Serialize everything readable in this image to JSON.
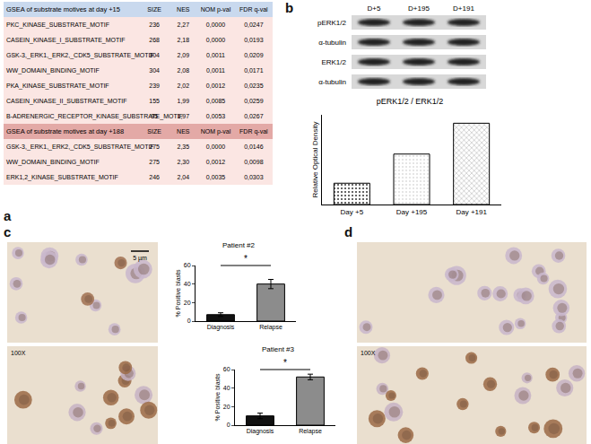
{
  "panel_labels": [
    "a",
    "b",
    "c",
    "d"
  ],
  "table": {
    "sections": [
      {
        "title": "GSEA of substrate motives at day +15",
        "header": [
          "SIZE",
          "NES",
          "NOM p-val",
          "FDR q-val"
        ],
        "rows": [
          [
            "PKC_KINASE_SUBSTRATE_MOTIF",
            "236",
            "2,27",
            "0,0000",
            "0,0247"
          ],
          [
            "CASEIN_KINASE_I_SUBSTRATE_MOTIF",
            "268",
            "2,18",
            "0,0000",
            "0,0193"
          ],
          [
            "GSK-3,_ERK1,_ERK2,_CDK5_SUBSTRATE_MOTIF",
            "304",
            "2,09",
            "0,0011",
            "0,0209"
          ],
          [
            "WW_DOMAIN_BINDING_MOTIF",
            "304",
            "2,08",
            "0,0011",
            "0,0171"
          ],
          [
            "PKA_KINASE_SUBSTRATE_MOTIF",
            "239",
            "2,02",
            "0,0012",
            "0,0235"
          ],
          [
            "CASEIN_KINASE_II_SUBSTRATE_MOTIF",
            "155",
            "1,99",
            "0,0085",
            "0,0259"
          ],
          [
            "B-ADRENERGIC_RECEPTOR_KINASE_SUBSTRATE_MOTIF",
            "95",
            "1,97",
            "0,0053",
            "0,0267"
          ]
        ]
      },
      {
        "title": "GSEA of  substrate motives at day +188",
        "header": [
          "SIZE",
          "NES",
          "NOM p-val",
          "FDR q-val"
        ],
        "rows": [
          [
            "GSK-3,_ERK1,_ERK2,_CDK5_SUBSTRATE_MOTIF",
            "275",
            "2,35",
            "0,0000",
            "0,0146"
          ],
          [
            "WW_DOMAIN_BINDING_MOTIF",
            "275",
            "2,30",
            "0,0012",
            "0,0098"
          ],
          [
            "ERK1,2_KINASE_SUBSTRATE_MOTIF",
            "246",
            "2,04",
            "0,0035",
            "0,0303"
          ]
        ]
      }
    ]
  },
  "blot": {
    "lanes": [
      "D+5",
      "D+195",
      "D+191"
    ],
    "rows": [
      "pERK1/2",
      "α-tubulin",
      "ERK1/2",
      "α-tubulin"
    ]
  },
  "micrographs": {
    "c": {
      "magnification": "100X",
      "scale_bar": "5 µm"
    },
    "d": {
      "magnification": "100X"
    }
  },
  "chart_data": [
    {
      "type": "bar",
      "title": "pERK1/2 / ERK1/2",
      "ylabel": "Relative Optical Density",
      "categories": [
        "Day +5",
        "Day +195",
        "Day +191"
      ],
      "values": [
        0.38,
        0.9,
        1.45
      ],
      "colors": [
        "#333333",
        "#dddddd",
        "#999999"
      ],
      "ylim": [
        0,
        1.6
      ],
      "tick_labels": "x"
    },
    {
      "type": "bar",
      "title": "Patient #2",
      "ylabel": "% Positive blasts",
      "categories": [
        "Diagnosis",
        "Relapse"
      ],
      "values": [
        7,
        40
      ],
      "errors": [
        2,
        5
      ],
      "colors": [
        "#111111",
        "#8c8c8c"
      ],
      "ylim": [
        0,
        60
      ],
      "yticks": [
        0,
        20,
        40,
        60
      ],
      "annotations": [
        {
          "text": "*"
        }
      ]
    },
    {
      "type": "bar",
      "title": "Patient #3",
      "ylabel": "% Positive blasts",
      "categories": [
        "Diagnosis",
        "Relapse"
      ],
      "values": [
        10,
        52
      ],
      "errors": [
        3,
        3
      ],
      "colors": [
        "#111111",
        "#8c8c8c"
      ],
      "ylim": [
        0,
        60
      ],
      "yticks": [
        0,
        20,
        40,
        60
      ],
      "annotations": [
        {
          "text": "*"
        }
      ]
    }
  ]
}
